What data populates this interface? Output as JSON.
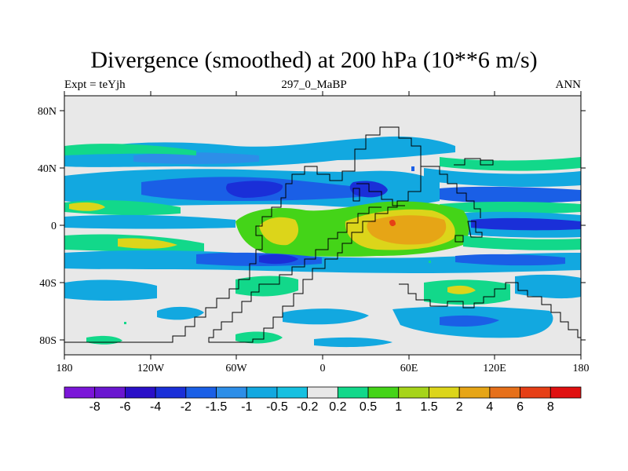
{
  "figure": {
    "title": "Divergence (smoothed) at 200 hPa (10**6 m/s)",
    "left_label": "Expt = teYjh",
    "center_label": "297_0_MaBP",
    "right_label": "ANN"
  },
  "map": {
    "x_ticks": [
      "180",
      "120W",
      "60W",
      "0",
      "60E",
      "120E",
      "180"
    ],
    "y_ticks": [
      "80N",
      "40N",
      "0",
      "40S",
      "80S"
    ],
    "extent": {
      "lon": [
        -180,
        180
      ],
      "lat": [
        -90,
        90
      ]
    }
  },
  "colorbar": {
    "colors": [
      "#7b16d8",
      "#6a16d0",
      "#2a0fc8",
      "#1a2fd8",
      "#1a5fe6",
      "#2d8ee8",
      "#12a8e0",
      "#16c0e0",
      "#e8e8e8",
      "#12d88a",
      "#44d418",
      "#a6d41a",
      "#dcd51a",
      "#e6a516",
      "#e6701a",
      "#e63f16",
      "#e01010"
    ],
    "labels": [
      "-8",
      "-6",
      "-4",
      "-2",
      "-1.5",
      "-1",
      "-0.5",
      "-0.2",
      "0.2",
      "0.5",
      "1",
      "1.5",
      "2",
      "4",
      "6",
      "8"
    ]
  }
}
